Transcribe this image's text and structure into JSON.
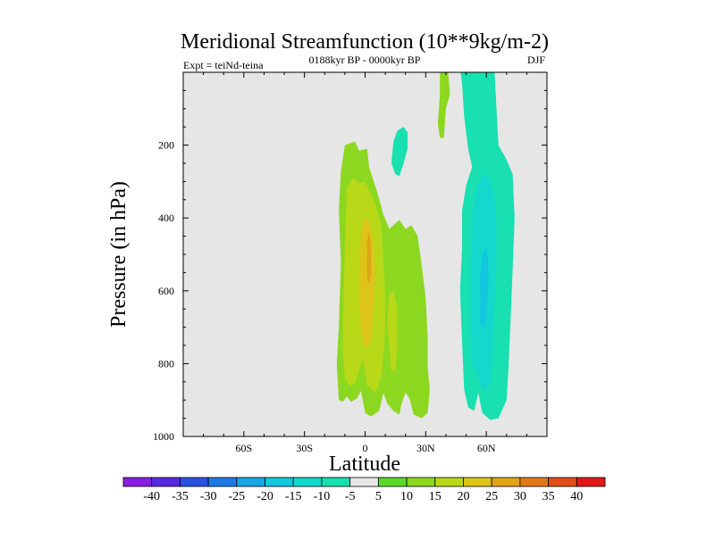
{
  "chart_data": {
    "type": "contour",
    "title": "Meridional Streamfunction (10**9kg/m-2)",
    "subtitle_left": "Expt = teiNd-teina",
    "subtitle_center": "0188kyr BP - 0000kyr BP",
    "subtitle_right": "DJF",
    "xlabel": "Latitude",
    "ylabel": "Pressure (in hPa)",
    "xlim": [
      -90,
      90
    ],
    "ylim": [
      1000,
      0
    ],
    "x_ticks": [
      {
        "value": -60,
        "label": "60S"
      },
      {
        "value": -30,
        "label": "30S"
      },
      {
        "value": 0,
        "label": "0"
      },
      {
        "value": 30,
        "label": "30N"
      },
      {
        "value": 60,
        "label": "60N"
      }
    ],
    "y_ticks": [
      {
        "value": 200,
        "label": "200"
      },
      {
        "value": 400,
        "label": "400"
      },
      {
        "value": 600,
        "label": "600"
      },
      {
        "value": 800,
        "label": "800"
      },
      {
        "value": 1000,
        "label": "1000"
      }
    ],
    "background_color": "#e6e6e6",
    "colorbar": {
      "labels": [
        "-40",
        "-35",
        "-30",
        "-25",
        "-20",
        "-15",
        "-10",
        "-5",
        "5",
        "10",
        "15",
        "20",
        "25",
        "30",
        "35",
        "40"
      ],
      "colors": [
        "#8a1ee0",
        "#5a2ae0",
        "#2a52e0",
        "#1e7ae6",
        "#18a6e6",
        "#12c6e0",
        "#14d8cc",
        "#18e0b0",
        "#e6e6e6",
        "#5ad82a",
        "#8cd820",
        "#b8d818",
        "#dcc418",
        "#e0a418",
        "#e07a18",
        "#e05018",
        "#e01818"
      ]
    },
    "regions": [
      {
        "level": "10",
        "points": [
          [
            -13,
            700
          ],
          [
            -12,
            520
          ],
          [
            -13,
            380
          ],
          [
            -12,
            270
          ],
          [
            -10,
            200
          ],
          [
            -5,
            190
          ],
          [
            -3,
            215
          ],
          [
            1,
            210
          ],
          [
            2,
            260
          ],
          [
            6,
            330
          ],
          [
            9,
            390
          ],
          [
            12,
            430
          ],
          [
            17,
            405
          ],
          [
            20,
            430
          ],
          [
            23,
            420
          ],
          [
            26,
            450
          ],
          [
            28,
            530
          ],
          [
            30,
            620
          ],
          [
            31,
            730
          ],
          [
            31,
            810
          ],
          [
            32,
            870
          ],
          [
            31,
            935
          ],
          [
            28,
            950
          ],
          [
            24,
            940
          ],
          [
            22,
            895
          ],
          [
            20,
            880
          ],
          [
            18,
            910
          ],
          [
            17,
            940
          ],
          [
            14,
            930
          ],
          [
            11,
            910
          ],
          [
            9,
            880
          ],
          [
            7,
            930
          ],
          [
            3,
            945
          ],
          [
            0,
            935
          ],
          [
            -2,
            875
          ],
          [
            -4,
            895
          ],
          [
            -7,
            905
          ],
          [
            -9,
            890
          ],
          [
            -11,
            905
          ],
          [
            -13,
            900
          ],
          [
            -14,
            800
          ]
        ]
      },
      {
        "level": "15",
        "points": [
          [
            -11,
            680
          ],
          [
            -10,
            480
          ],
          [
            -9,
            320
          ],
          [
            -6,
            290
          ],
          [
            -3,
            305
          ],
          [
            0,
            300
          ],
          [
            5,
            360
          ],
          [
            8,
            420
          ],
          [
            9,
            500
          ],
          [
            10,
            620
          ],
          [
            10,
            700
          ],
          [
            9,
            780
          ],
          [
            8,
            840
          ],
          [
            5,
            880
          ],
          [
            1,
            860
          ],
          [
            -1,
            790
          ],
          [
            -3,
            820
          ],
          [
            -5,
            855
          ],
          [
            -8,
            860
          ],
          [
            -10,
            840
          ],
          [
            -11,
            760
          ]
        ]
      },
      {
        "level": "15",
        "points": [
          [
            12,
            610
          ],
          [
            14,
            600
          ],
          [
            16,
            650
          ],
          [
            16,
            760
          ],
          [
            15,
            820
          ],
          [
            13,
            820
          ],
          [
            12,
            760
          ],
          [
            11,
            680
          ]
        ]
      },
      {
        "level": "20",
        "points": [
          [
            -3,
            650
          ],
          [
            -3,
            540
          ],
          [
            -2,
            440
          ],
          [
            0,
            400
          ],
          [
            2,
            410
          ],
          [
            4,
            460
          ],
          [
            5,
            560
          ],
          [
            4,
            660
          ],
          [
            3,
            730
          ],
          [
            1,
            760
          ],
          [
            -1,
            740
          ],
          [
            -2,
            700
          ]
        ]
      },
      {
        "level": "25",
        "points": [
          [
            1,
            520
          ],
          [
            1,
            460
          ],
          [
            2,
            440
          ],
          [
            3,
            480
          ],
          [
            3,
            550
          ],
          [
            2,
            580
          ],
          [
            1,
            570
          ]
        ]
      },
      {
        "level": "10",
        "points": [
          [
            37,
            -10
          ],
          [
            41,
            -10
          ],
          [
            42,
            60
          ],
          [
            40,
            100
          ],
          [
            39,
            180
          ],
          [
            37,
            180
          ],
          [
            36,
            140
          ],
          [
            37,
            60
          ]
        ]
      },
      {
        "level": "-5",
        "points": [
          [
            13,
            250
          ],
          [
            14,
            190
          ],
          [
            16,
            160
          ],
          [
            19,
            150
          ],
          [
            21,
            165
          ],
          [
            21,
            210
          ],
          [
            19,
            250
          ],
          [
            17,
            285
          ],
          [
            15,
            280
          ]
        ]
      },
      {
        "level": "-5",
        "points": [
          [
            47,
            -10
          ],
          [
            64,
            -10
          ],
          [
            65,
            100
          ],
          [
            66,
            200
          ],
          [
            70,
            240
          ],
          [
            73,
            280
          ],
          [
            74,
            400
          ],
          [
            73,
            540
          ],
          [
            72,
            680
          ],
          [
            71,
            810
          ],
          [
            70,
            900
          ],
          [
            66,
            950
          ],
          [
            62,
            955
          ],
          [
            58,
            935
          ],
          [
            56,
            880
          ],
          [
            54,
            930
          ],
          [
            51,
            920
          ],
          [
            49,
            870
          ],
          [
            48,
            740
          ],
          [
            47,
            600
          ],
          [
            48,
            480
          ],
          [
            48,
            380
          ],
          [
            50,
            310
          ],
          [
            53,
            260
          ],
          [
            51,
            210
          ],
          [
            49,
            120
          ],
          [
            48,
            30
          ]
        ]
      },
      {
        "level": "-10",
        "points": [
          [
            52,
            690
          ],
          [
            52,
            540
          ],
          [
            53,
            420
          ],
          [
            54,
            340
          ],
          [
            57,
            290
          ],
          [
            60,
            280
          ],
          [
            63,
            310
          ],
          [
            65,
            400
          ],
          [
            65,
            520
          ],
          [
            64,
            650
          ],
          [
            63,
            780
          ],
          [
            62,
            860
          ],
          [
            59,
            880
          ],
          [
            57,
            860
          ],
          [
            55,
            820
          ],
          [
            53,
            800
          ]
        ]
      },
      {
        "level": "-15",
        "points": [
          [
            57,
            640
          ],
          [
            57,
            550
          ],
          [
            58,
            500
          ],
          [
            60,
            480
          ],
          [
            61,
            520
          ],
          [
            61,
            600
          ],
          [
            60,
            660
          ],
          [
            59,
            700
          ],
          [
            57,
            690
          ]
        ]
      }
    ]
  }
}
